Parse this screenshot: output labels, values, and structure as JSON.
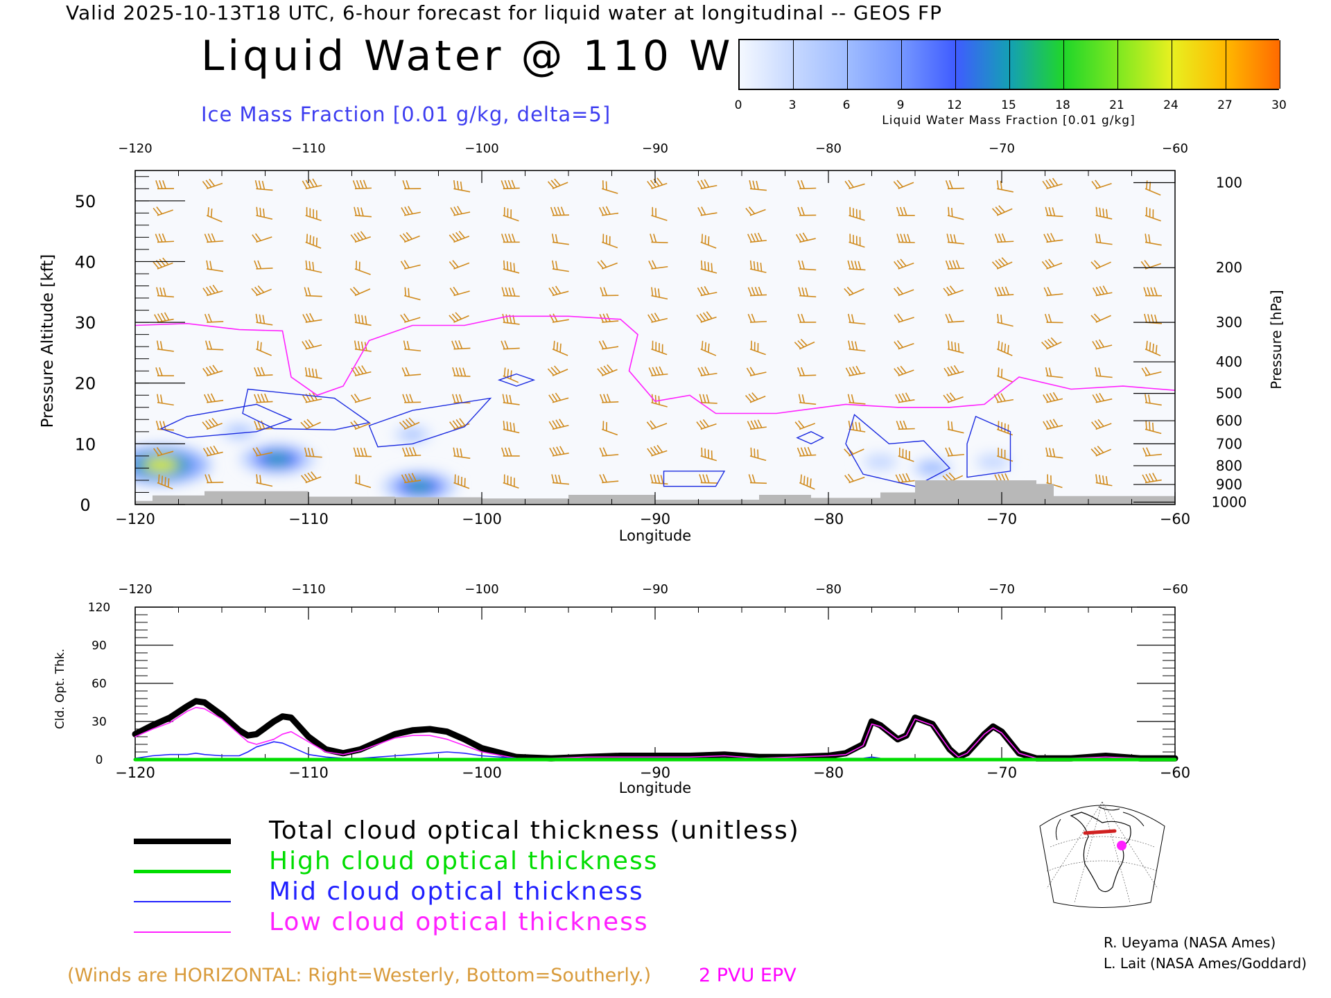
{
  "header": {
    "line": "Valid 2025-10-13T18 UTC, 6-hour forecast for liquid water at longitudinal -- GEOS FP",
    "title": "Liquid Water @ 110 W",
    "subtitle": "Ice Mass Fraction [0.01 g/kg, delta=5]"
  },
  "colorbar": {
    "ticks": [
      "0",
      "3",
      "6",
      "9",
      "12",
      "15",
      "18",
      "21",
      "24",
      "27",
      "30"
    ],
    "label": "Liquid Water Mass Fraction [0.01 g/kg]",
    "colors": [
      "#f4f8ff",
      "#c6d8ff",
      "#9fbcff",
      "#7597ff",
      "#3f5cff",
      "#14a0b4",
      "#20d62a",
      "#7ee820",
      "#e8f020",
      "#ffb800",
      "#ff6a00",
      "#ff2000"
    ]
  },
  "colors": {
    "wind_barb": "#d08a1c",
    "pvu_contour": "#ff20ff",
    "ice_contour": "#1a2ae0",
    "terrain": "#b8b8b8",
    "total": "#000000",
    "high": "#00dd00",
    "mid": "#2020ff",
    "low": "#ff20ff"
  },
  "chart_data": [
    {
      "type": "heatmap",
      "title": "Liquid Water @ 110 W",
      "xlabel": "Longitude",
      "ylabel": "Pressure Altitude [kft]",
      "ylabel_right": "Pressure [hPa]",
      "xlim": [
        -120,
        -60
      ],
      "ylim": [
        0,
        55
      ],
      "x_ticks": [
        "−120",
        "−110",
        "−100",
        "−90",
        "−80",
        "−70",
        "−60"
      ],
      "x_tick_values": [
        -120,
        -110,
        -100,
        -90,
        -80,
        -70,
        -60
      ],
      "y_ticks": [
        "0",
        "10",
        "20",
        "30",
        "40",
        "50"
      ],
      "y_tick_values": [
        0,
        10,
        20,
        30,
        40,
        50
      ],
      "pressure_ticks": [
        "100",
        "200",
        "300",
        "400",
        "500",
        "600",
        "700",
        "800",
        "900",
        "1000"
      ],
      "pressure_tick_values": [
        53,
        39,
        30,
        23.5,
        18.3,
        13.8,
        10,
        6.4,
        3.3,
        0.4
      ],
      "liquid_water_blobs": [
        {
          "lon": -118.5,
          "alt": 6.5,
          "max": 21
        },
        {
          "lon": -111.8,
          "alt": 7.5,
          "max": 14
        },
        {
          "lon": -103.6,
          "alt": 3.0,
          "max": 14
        },
        {
          "lon": -114,
          "alt": 12,
          "max": 5
        },
        {
          "lon": -104,
          "alt": 11.5,
          "max": 5
        },
        {
          "lon": -77,
          "alt": 7,
          "max": 4
        },
        {
          "lon": -74,
          "alt": 6,
          "max": 6
        },
        {
          "lon": -70.5,
          "alt": 7,
          "max": 4
        }
      ],
      "pvu_contour_2pvu": [
        {
          "lon": -120,
          "alt": 29.5
        },
        {
          "lon": -117,
          "alt": 29.8
        },
        {
          "lon": -114,
          "alt": 28.8
        },
        {
          "lon": -111.5,
          "alt": 28.6
        },
        {
          "lon": -111,
          "alt": 21
        },
        {
          "lon": -109.5,
          "alt": 18
        },
        {
          "lon": -108,
          "alt": 19.5
        },
        {
          "lon": -106.5,
          "alt": 27
        },
        {
          "lon": -104,
          "alt": 29.5
        },
        {
          "lon": -101,
          "alt": 29.5
        },
        {
          "lon": -98.5,
          "alt": 31
        },
        {
          "lon": -95,
          "alt": 31
        },
        {
          "lon": -92,
          "alt": 30.5
        },
        {
          "lon": -91,
          "alt": 28
        },
        {
          "lon": -91.5,
          "alt": 22
        },
        {
          "lon": -90,
          "alt": 17
        },
        {
          "lon": -88,
          "alt": 18
        },
        {
          "lon": -86.5,
          "alt": 15
        },
        {
          "lon": -83,
          "alt": 15
        },
        {
          "lon": -79,
          "alt": 16.5
        },
        {
          "lon": -76,
          "alt": 16
        },
        {
          "lon": -73,
          "alt": 16
        },
        {
          "lon": -71,
          "alt": 16.5
        },
        {
          "lon": -69,
          "alt": 21
        },
        {
          "lon": -66,
          "alt": 19
        },
        {
          "lon": -63,
          "alt": 19.5
        },
        {
          "lon": -60,
          "alt": 18.8
        }
      ],
      "terrain_kft": [
        {
          "lon": -120,
          "alt": 0.6
        },
        {
          "lon": -119,
          "alt": 1.5
        },
        {
          "lon": -116,
          "alt": 2.2
        },
        {
          "lon": -110,
          "alt": 1.3
        },
        {
          "lon": -105,
          "alt": 1.2
        },
        {
          "lon": -100,
          "alt": 1.0
        },
        {
          "lon": -95,
          "alt": 1.6
        },
        {
          "lon": -90,
          "alt": 0.8
        },
        {
          "lon": -84,
          "alt": 1.6
        },
        {
          "lon": -81,
          "alt": 1.1
        },
        {
          "lon": -77,
          "alt": 2.0
        },
        {
          "lon": -75,
          "alt": 4.0
        },
        {
          "lon": -68,
          "alt": 3.4
        },
        {
          "lon": -67,
          "alt": 1.4
        },
        {
          "lon": -60,
          "alt": 0.8
        }
      ]
    },
    {
      "type": "line",
      "xlabel": "Longitude",
      "ylabel": "Cld. Opt. Thk.",
      "xlim": [
        -120,
        -60
      ],
      "ylim": [
        0,
        120
      ],
      "x_ticks": [
        "−120",
        "−110",
        "−100",
        "−90",
        "−80",
        "−70",
        "−60"
      ],
      "x_tick_values": [
        -120,
        -110,
        -100,
        -90,
        -80,
        -70,
        -60
      ],
      "y_ticks": [
        "0",
        "30",
        "60",
        "90",
        "120"
      ],
      "y_tick_values": [
        0,
        30,
        60,
        90,
        120
      ],
      "x": [
        -120,
        -119,
        -118,
        -117,
        -116.5,
        -116,
        -115,
        -114,
        -113.5,
        -113,
        -112,
        -111.5,
        -111,
        -110,
        -109,
        -108,
        -107,
        -106,
        -105,
        -104,
        -103,
        -102,
        -101,
        -100,
        -98,
        -96,
        -94,
        -92,
        -90,
        -88,
        -86,
        -84,
        -82,
        -80,
        -79,
        -78,
        -77.5,
        -77,
        -76,
        -75.5,
        -75,
        -74,
        -73,
        -72.5,
        -72,
        -71,
        -70.5,
        -70,
        -69,
        -68,
        -66,
        -64,
        -62,
        -60
      ],
      "series": [
        {
          "name": "Total cloud optical thickness (unitless)",
          "color": "#000000",
          "values": [
            20,
            27,
            33,
            42,
            46,
            45,
            35,
            23,
            19,
            20,
            30,
            34,
            33,
            18,
            8,
            5,
            8,
            14,
            20,
            23,
            24,
            22,
            16,
            9,
            2,
            1,
            2,
            3,
            3,
            3,
            4,
            2,
            2,
            3,
            5,
            12,
            30,
            27,
            16,
            19,
            33,
            28,
            8,
            2,
            5,
            20,
            26,
            22,
            5,
            1,
            1,
            3,
            1,
            1
          ]
        },
        {
          "name": "High cloud optical thickness",
          "color": "#00dd00",
          "values": [
            0,
            0,
            0,
            0,
            0,
            0,
            0,
            0,
            0,
            0,
            0,
            0,
            0,
            0,
            0,
            0,
            0,
            0,
            0,
            0,
            0,
            0,
            0,
            0,
            0,
            0,
            0,
            0,
            0,
            0,
            0,
            0,
            0,
            0,
            0,
            0,
            0,
            0,
            0,
            0,
            0,
            0,
            0,
            0,
            0,
            0,
            0,
            0,
            0,
            0,
            0,
            0,
            0,
            0
          ]
        },
        {
          "name": "Mid cloud optical thickness",
          "color": "#2020ff",
          "values": [
            1,
            3,
            4,
            4,
            5,
            4,
            3,
            3,
            6,
            10,
            14,
            13,
            10,
            4,
            2,
            1,
            1,
            2,
            3,
            4,
            5,
            6,
            5,
            3,
            1,
            0,
            0,
            1,
            1,
            1,
            1,
            1,
            0,
            0,
            1,
            1,
            2,
            1,
            0,
            0,
            0,
            0,
            0,
            0,
            0,
            0,
            0,
            1,
            0,
            0,
            0,
            0,
            0,
            0
          ]
        },
        {
          "name": "Low cloud optical thickness",
          "color": "#ff20ff",
          "values": [
            18,
            24,
            29,
            38,
            41,
            40,
            32,
            20,
            14,
            12,
            16,
            20,
            22,
            14,
            6,
            4,
            7,
            12,
            17,
            19,
            19,
            16,
            11,
            6,
            1,
            1,
            2,
            2,
            2,
            2,
            3,
            1,
            2,
            3,
            4,
            11,
            28,
            26,
            16,
            19,
            32,
            27,
            8,
            2,
            5,
            20,
            25,
            21,
            5,
            1,
            1,
            2,
            1,
            1
          ]
        }
      ]
    }
  ],
  "legend": {
    "items": [
      {
        "label": "Total cloud optical thickness (unitless)",
        "color": "#000000"
      },
      {
        "label": "High cloud optical thickness",
        "color": "#00dd00"
      },
      {
        "label": "Mid cloud optical thickness",
        "color": "#2020ff"
      },
      {
        "label": "Low cloud optical thickness",
        "color": "#ff20ff"
      }
    ]
  },
  "footer": {
    "winds_note": "(Winds are HORIZONTAL: Right=Westerly, Bottom=Southerly.)",
    "pvu_label": "2 PVU EPV",
    "credit1": "R. Ueyama (NASA Ames)",
    "credit2": "L. Lait (NASA Ames/Goddard)"
  }
}
